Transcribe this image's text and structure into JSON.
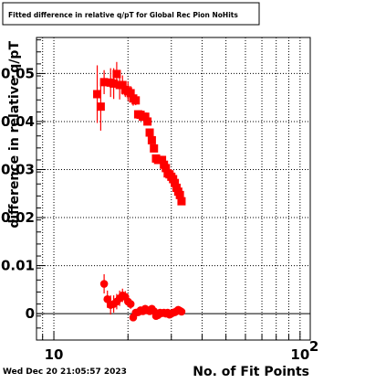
{
  "chart_data": {
    "type": "scatter",
    "title": "Fitted difference in relative q/pT for Global Rec Pion NoHits",
    "xlabel": "No. of Fit Points",
    "ylabel": "difference in relative q/pT",
    "x_scale": "log",
    "xlim": [
      8.5,
      110
    ],
    "ylim": [
      -0.0055,
      0.0575
    ],
    "grid": true,
    "x_tick_labels": [
      {
        "value": 10,
        "label": "10"
      },
      {
        "value": 100,
        "label": "10",
        "exponent": "2"
      }
    ],
    "y_ticks": [
      0,
      0.01,
      0.02,
      0.03,
      0.04,
      0.05
    ],
    "y_tick_labels": [
      "0",
      "0.01",
      "0.02",
      "0.03",
      "0.04",
      "0.05"
    ],
    "footer": "Wed Dec 20 21:05:57 2023",
    "series": [
      {
        "color": "#ff0000",
        "marker": "square",
        "x": [
          15,
          15.5,
          16,
          17,
          17.5,
          18,
          18.5,
          19,
          19.5,
          20,
          20.5,
          21,
          21.5,
          22,
          22.5,
          23,
          23.5,
          24,
          24.5,
          25,
          25.5,
          26,
          26.5,
          27,
          27.5,
          28,
          28.5,
          29,
          29.5,
          30,
          30.5,
          31,
          31.5,
          32,
          32.5,
          33
        ],
        "y": [
          0.0457,
          0.0431,
          0.0482,
          0.0481,
          0.0479,
          0.0499,
          0.0476,
          0.0476,
          0.0466,
          0.0463,
          0.0459,
          0.0448,
          0.0444,
          0.0415,
          0.0414,
          0.041,
          0.041,
          0.04,
          0.0377,
          0.0361,
          0.0344,
          0.0323,
          0.032,
          0.032,
          0.032,
          0.031,
          0.0303,
          0.0292,
          0.029,
          0.0285,
          0.028,
          0.0272,
          0.0262,
          0.0254,
          0.0247,
          0.0234
        ],
        "yerr": [
          0.006,
          0.005,
          0.0025,
          0.003,
          0.0032,
          0.0025,
          0.003,
          0.002,
          0.0015,
          0.002,
          0.0015,
          0.0015,
          0.001,
          0.0008,
          0.0008,
          0.0008,
          0.0008,
          0.0008,
          0.0008,
          0.0008,
          0.0006,
          0.0006,
          0.0006,
          0.0006,
          0.0006,
          0.0006,
          0.0006,
          0.0006,
          0.0006,
          0.0006,
          0.0006,
          0.0006,
          0.0006,
          0.0006,
          0.0006,
          0.0006
        ]
      },
      {
        "color": "#ff0000",
        "marker": "circle",
        "x": [
          16,
          16.5,
          17,
          17.5,
          18,
          18.5,
          19,
          19.5,
          20,
          20.5,
          21,
          21.5,
          22,
          22.5,
          23,
          23.5,
          24,
          24.5,
          25,
          25.5,
          26,
          26.5,
          27,
          27.5,
          28,
          28.5,
          29,
          29.5,
          30,
          30.5,
          31,
          31.5,
          32,
          32.5,
          33
        ],
        "y": [
          0.0062,
          0.003,
          0.0018,
          0.002,
          0.0025,
          0.0032,
          0.0038,
          0.0035,
          0.0025,
          0.002,
          -0.0008,
          0.0002,
          0.0003,
          0.0007,
          0.0005,
          0.001,
          0.0007,
          0.0005,
          0.001,
          0.0005,
          -0.0005,
          -0.0003,
          0.0002,
          0.0001,
          0.0002,
          0.0,
          0.0002,
          -0.0002,
          0.0,
          0.0002,
          0.0003,
          0.0005,
          0.0008,
          0.0006,
          0.0004
        ],
        "yerr": [
          0.002,
          0.0018,
          0.002,
          0.0018,
          0.0016,
          0.0016,
          0.0014,
          0.0012,
          0.001,
          0.001,
          0.0008,
          0.0006,
          0.0006,
          0.0005,
          0.0005,
          0.0005,
          0.0005,
          0.0005,
          0.0005,
          0.0004,
          0.0004,
          0.0004,
          0.0004,
          0.0004,
          0.0004,
          0.0004,
          0.0004,
          0.0004,
          0.0004,
          0.0004,
          0.0004,
          0.0004,
          0.0004,
          0.0004,
          0.0004
        ]
      }
    ]
  }
}
